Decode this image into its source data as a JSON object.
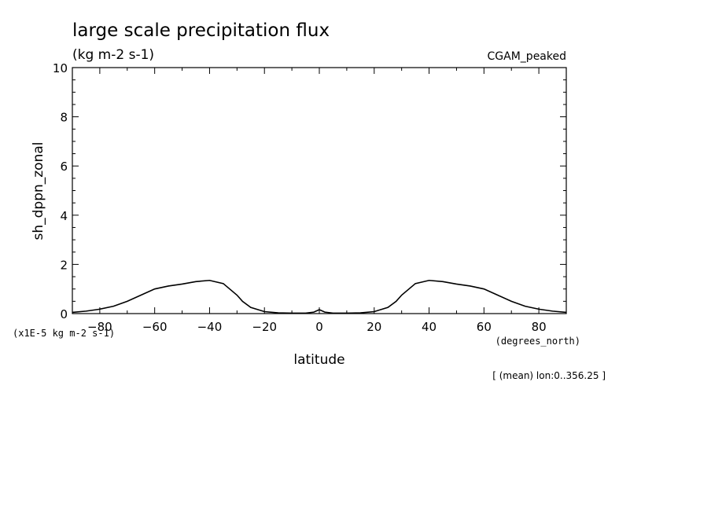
{
  "chart_data": {
    "type": "line",
    "title": "large scale precipitation flux",
    "units": "(kg m-2 s-1)",
    "dataset": "CGAM_peaked",
    "ylabel": "sh_dppn_zonal",
    "xlabel": "latitude",
    "xunits": "(degrees_north)",
    "yscale_note": "(x1E-5 kg m-2 s-1)",
    "footnote": "[ (mean) lon:0..356.25 ]",
    "xlim": [
      -90,
      90
    ],
    "ylim": [
      0,
      10
    ],
    "xticks": [
      -80,
      -60,
      -40,
      -20,
      0,
      20,
      40,
      60,
      80
    ],
    "xtick_labels": [
      "-80",
      "-60",
      "-40",
      "-20",
      "0",
      "20",
      "40",
      "60",
      "80"
    ],
    "yticks": [
      0,
      2,
      4,
      6,
      8,
      10
    ],
    "ytick_labels": [
      "0",
      "2",
      "4",
      "6",
      "8",
      "10"
    ],
    "series": [
      {
        "x": [
          -90,
          -85,
          -80,
          -75,
          -70,
          -65,
          -60,
          -55,
          -50,
          -45,
          -40,
          -35,
          -30,
          -28,
          -25,
          -20,
          -15,
          -10,
          -5,
          -2,
          0,
          2,
          5,
          10,
          15,
          20,
          25,
          28,
          30,
          35,
          40,
          45,
          50,
          55,
          60,
          65,
          70,
          75,
          80,
          85,
          90
        ],
        "values": [
          0.05,
          0.1,
          0.18,
          0.3,
          0.5,
          0.75,
          1.0,
          1.12,
          1.2,
          1.3,
          1.35,
          1.22,
          0.75,
          0.5,
          0.25,
          0.08,
          0.03,
          0.02,
          0.02,
          0.06,
          0.16,
          0.06,
          0.02,
          0.02,
          0.03,
          0.08,
          0.25,
          0.5,
          0.75,
          1.22,
          1.35,
          1.3,
          1.2,
          1.12,
          1.0,
          0.75,
          0.5,
          0.3,
          0.18,
          0.1,
          0.05
        ]
      }
    ]
  }
}
